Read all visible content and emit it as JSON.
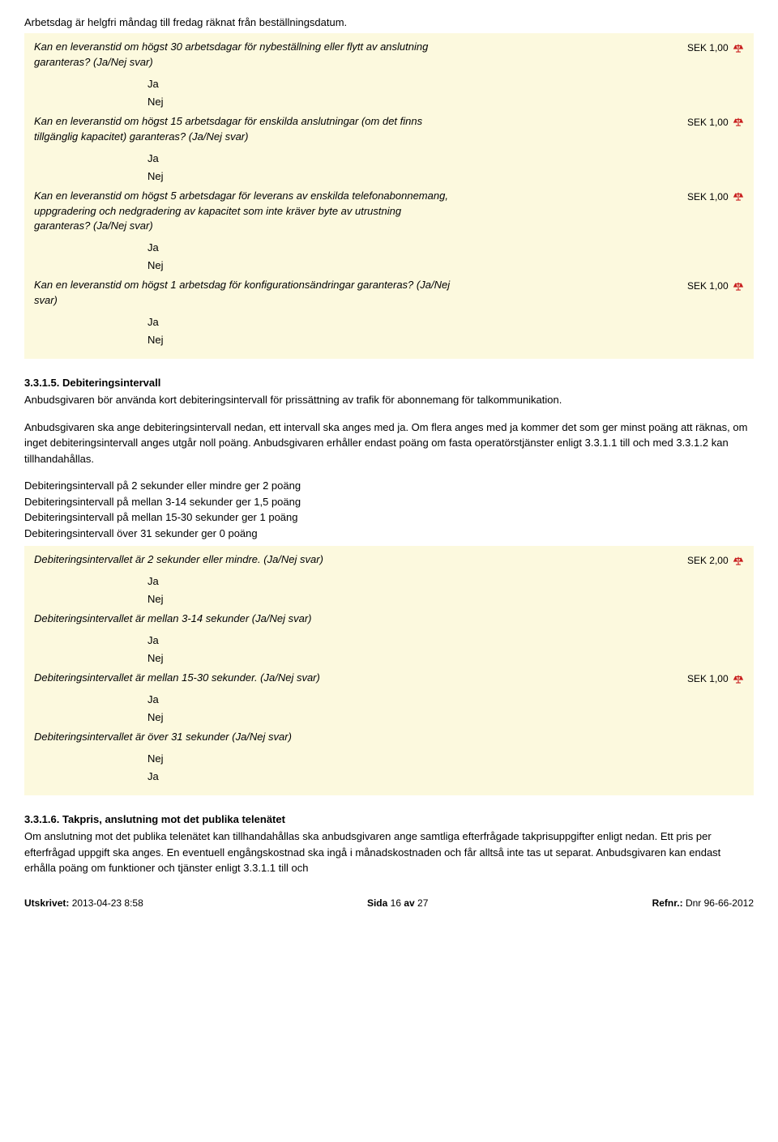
{
  "intro": "Arbetsdag är helgfri måndag till fredag räknat från beställningsdatum.",
  "questions1": [
    {
      "text": "Kan en leveranstid om högst 30 arbetsdagar för nybeställning eller flytt av anslutning garanteras? (Ja/Nej svar)",
      "price": "SEK 1,00",
      "answers": [
        "Ja",
        "Nej"
      ]
    },
    {
      "text": "Kan en leveranstid om högst 15 arbetsdagar för enskilda anslutningar (om det finns tillgänglig kapacitet) garanteras? (Ja/Nej svar)",
      "price": "SEK 1,00",
      "answers": [
        "Ja",
        "Nej"
      ]
    },
    {
      "text": "Kan en leveranstid om högst 5 arbetsdagar för leverans av enskilda telefonabonnemang, uppgradering och nedgradering av kapacitet som inte kräver byte av utrustning garanteras? (Ja/Nej svar)",
      "price": "SEK 1,00",
      "answers": [
        "Ja",
        "Nej"
      ]
    },
    {
      "text": "Kan en leveranstid om högst 1 arbetsdag för konfigurationsändringar garanteras? (Ja/Nej svar)",
      "price": "SEK 1,00",
      "answers": [
        "Ja",
        "Nej"
      ]
    }
  ],
  "section1": {
    "title": "3.3.1.5. Debiteringsintervall",
    "p1": "Anbudsgivaren bör använda kort debiteringsintervall för prissättning av trafik för abonnemang för talkommunikation.",
    "p2": "Anbudsgivaren ska ange debiteringsintervall nedan, ett intervall ska anges med ja. Om flera anges med ja kommer det som ger minst poäng att räknas, om inget debiteringsintervall anges utgår noll poäng. Anbudsgivaren erhåller endast poäng om fasta operatörstjänster enligt 3.3.1.1 till och med 3.3.1.2 kan tillhandahållas.",
    "points": [
      "Debiteringsintervall på 2 sekunder eller mindre ger 2 poäng",
      "Debiteringsintervall på mellan 3-14 sekunder ger 1,5 poäng",
      "Debiteringsintervall på mellan 15-30 sekunder ger 1 poäng",
      "Debiteringsintervall över 31 sekunder ger 0 poäng"
    ]
  },
  "questions2": [
    {
      "text": "Debiteringsintervallet är 2 sekunder eller mindre. (Ja/Nej svar)",
      "price": "SEK 2,00",
      "answers": [
        "Ja",
        "Nej"
      ]
    },
    {
      "text": "Debiteringsintervallet är mellan 3-14 sekunder (Ja/Nej svar)",
      "price": "",
      "answers": [
        "Ja",
        "Nej"
      ]
    },
    {
      "text": "Debiteringsintervallet är mellan 15-30 sekunder. (Ja/Nej svar)",
      "price": "SEK 1,00",
      "answers": [
        "Ja",
        "Nej"
      ]
    },
    {
      "text": "Debiteringsintervallet är över 31 sekunder (Ja/Nej svar)",
      "price": "",
      "answers": [
        "Nej",
        "Ja"
      ]
    }
  ],
  "section2": {
    "title": "3.3.1.6. Takpris, anslutning mot det publika telenätet",
    "p1": "Om anslutning mot det publika telenätet kan tillhandahållas ska anbudsgivaren ange samtliga efterfrågade takprisuppgifter enligt nedan. Ett pris per efterfrågad uppgift ska anges. En eventuell engångskostnad ska ingå i månadskostnaden och får alltså inte tas ut separat. Anbudsgivaren kan endast erhålla poäng om funktioner och tjänster enligt 3.3.1.1 till och"
  },
  "footer": {
    "left_label": "Utskrivet:",
    "left_value": " 2013-04-23  8:58",
    "center_label": "Sida ",
    "center_page": "16",
    "center_sep": " av ",
    "center_total": "27",
    "right_label": "Refnr.:",
    "right_value": " Dnr 96-66-2012"
  },
  "icon_colors": {
    "fill": "#c81e1e"
  }
}
